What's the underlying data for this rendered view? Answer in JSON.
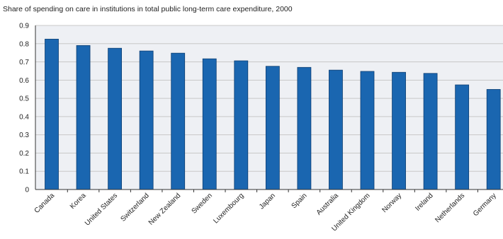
{
  "chart_data": {
    "type": "bar",
    "title": "Share of spending on care in institutions in total public long-term care expenditure, 2000",
    "xlabel": "",
    "ylabel": "",
    "categories": [
      "Canada",
      "Korea",
      "United States",
      "Switzerland",
      "New Zealand",
      "Sweden",
      "Luxembourg",
      "Japan",
      "Spain",
      "Australia",
      "United Kingdom",
      "Norway",
      "Ireland",
      "Netherlands",
      "Germany"
    ],
    "values": [
      0.825,
      0.79,
      0.775,
      0.76,
      0.748,
      0.717,
      0.706,
      0.676,
      0.67,
      0.655,
      0.648,
      0.643,
      0.637,
      0.574,
      0.549
    ],
    "ylim": [
      0,
      0.9
    ],
    "yticks": [
      "0",
      "0.1",
      "0.2",
      "0.3",
      "0.4",
      "0.5",
      "0.6",
      "0.7",
      "0.8",
      "0.9"
    ],
    "grid": "horizontal",
    "bar_color": "#1a66b0",
    "bar_edge_color": "#0d3f73",
    "grid_color": "#c8c8c8",
    "background_color": "#eef0f4"
  }
}
